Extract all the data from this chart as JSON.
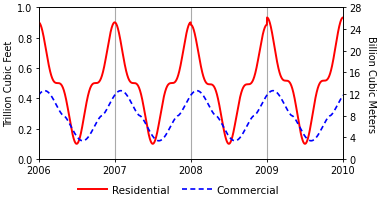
{
  "title": "",
  "ylabel_left": "Trillion Cubic Feet",
  "ylabel_right": "Billion Cubic Meters",
  "xlabel": "",
  "xlim": [
    2006.0,
    2010.0
  ],
  "ylim_left": [
    0.0,
    1.0
  ],
  "ylim_right": [
    0,
    28
  ],
  "yticks_left": [
    0.0,
    0.2,
    0.4,
    0.6,
    0.8,
    1.0
  ],
  "yticks_right": [
    0,
    4,
    8,
    12,
    16,
    20,
    24,
    28
  ],
  "xticks": [
    2006,
    2007,
    2008,
    2009,
    2010
  ],
  "vlines": [
    2007,
    2008,
    2009
  ],
  "vline_color": "#aaaaaa",
  "residential_color": "#ff0000",
  "commercial_color": "#0000ff",
  "background_color": "#ffffff",
  "legend_residential": "Residential",
  "legend_commercial": "Commercial",
  "residential_lw": 1.4,
  "commercial_lw": 1.2,
  "res_base": 0.1,
  "res_amp": 0.8,
  "res_sharpness": 3,
  "com_base": 0.12,
  "com_amp": 0.33,
  "com_sharpness": 1.5,
  "com_phase_lag": 0.08
}
